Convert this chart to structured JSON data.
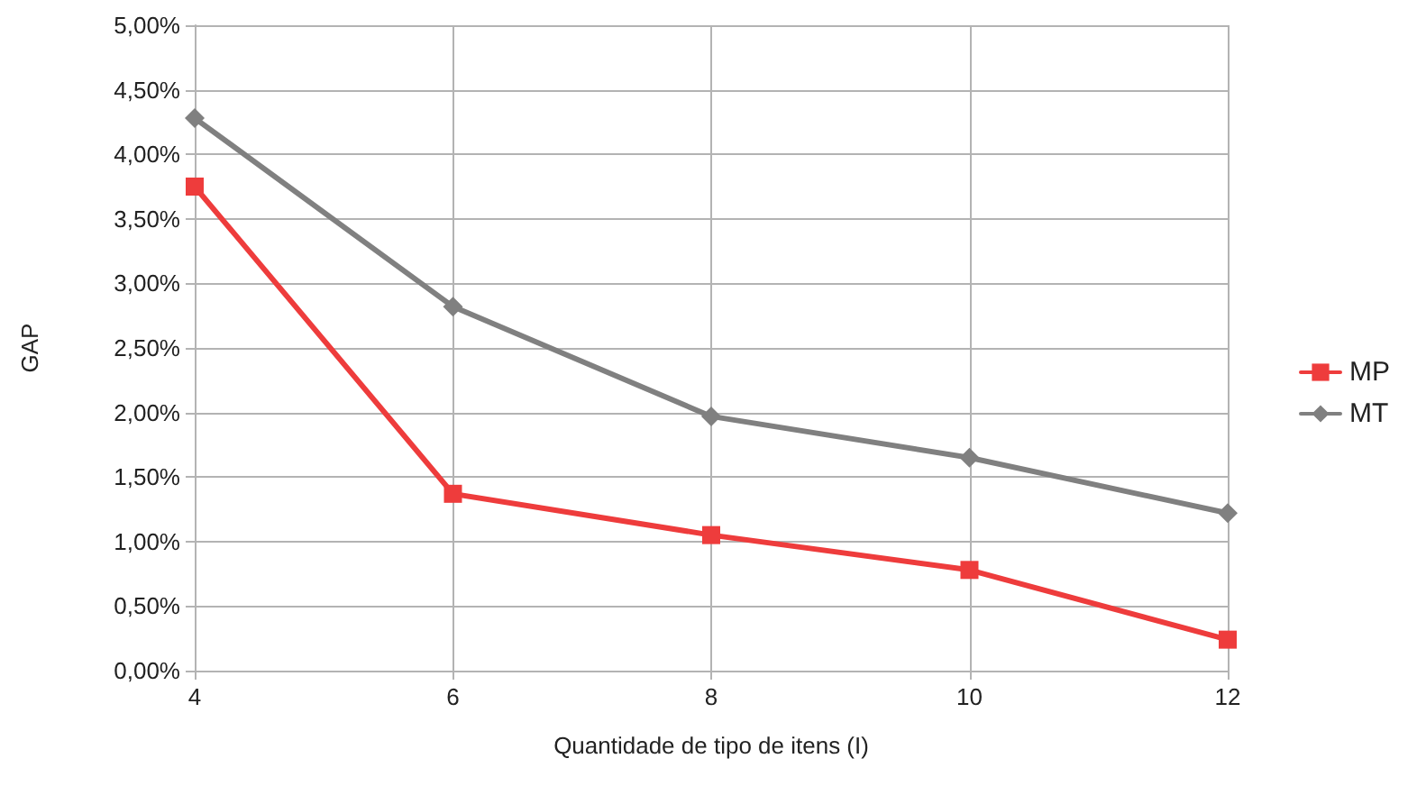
{
  "chart_data": {
    "type": "line",
    "xlabel": "Quantidade de tipo de itens (I)",
    "ylabel": "GAP",
    "x": [
      4,
      6,
      8,
      10,
      12
    ],
    "series": [
      {
        "name": "MP",
        "color": "#ee3c3c",
        "marker": "square",
        "values": [
          3.75,
          1.37,
          1.05,
          0.78,
          0.24
        ]
      },
      {
        "name": "MT",
        "color": "#808080",
        "marker": "diamond",
        "values": [
          4.28,
          2.82,
          1.97,
          1.65,
          1.22
        ]
      }
    ],
    "xlim": [
      4,
      12
    ],
    "xticks": [
      4,
      6,
      8,
      10,
      12
    ],
    "ylim": [
      0,
      5
    ],
    "yticks": [
      {
        "value": 0,
        "label": "0,00%"
      },
      {
        "value": 0.5,
        "label": "0,50%"
      },
      {
        "value": 1,
        "label": "1,00%"
      },
      {
        "value": 1.5,
        "label": "1,50%"
      },
      {
        "value": 2,
        "label": "2,00%"
      },
      {
        "value": 2.5,
        "label": "2,50%"
      },
      {
        "value": 3,
        "label": "3,00%"
      },
      {
        "value": 3.5,
        "label": "3,50%"
      },
      {
        "value": 4,
        "label": "4,00%"
      },
      {
        "value": 4.5,
        "label": "4,50%"
      },
      {
        "value": 5,
        "label": "5,00%"
      }
    ],
    "grid": true,
    "legend": "right",
    "line_style": "solid"
  }
}
